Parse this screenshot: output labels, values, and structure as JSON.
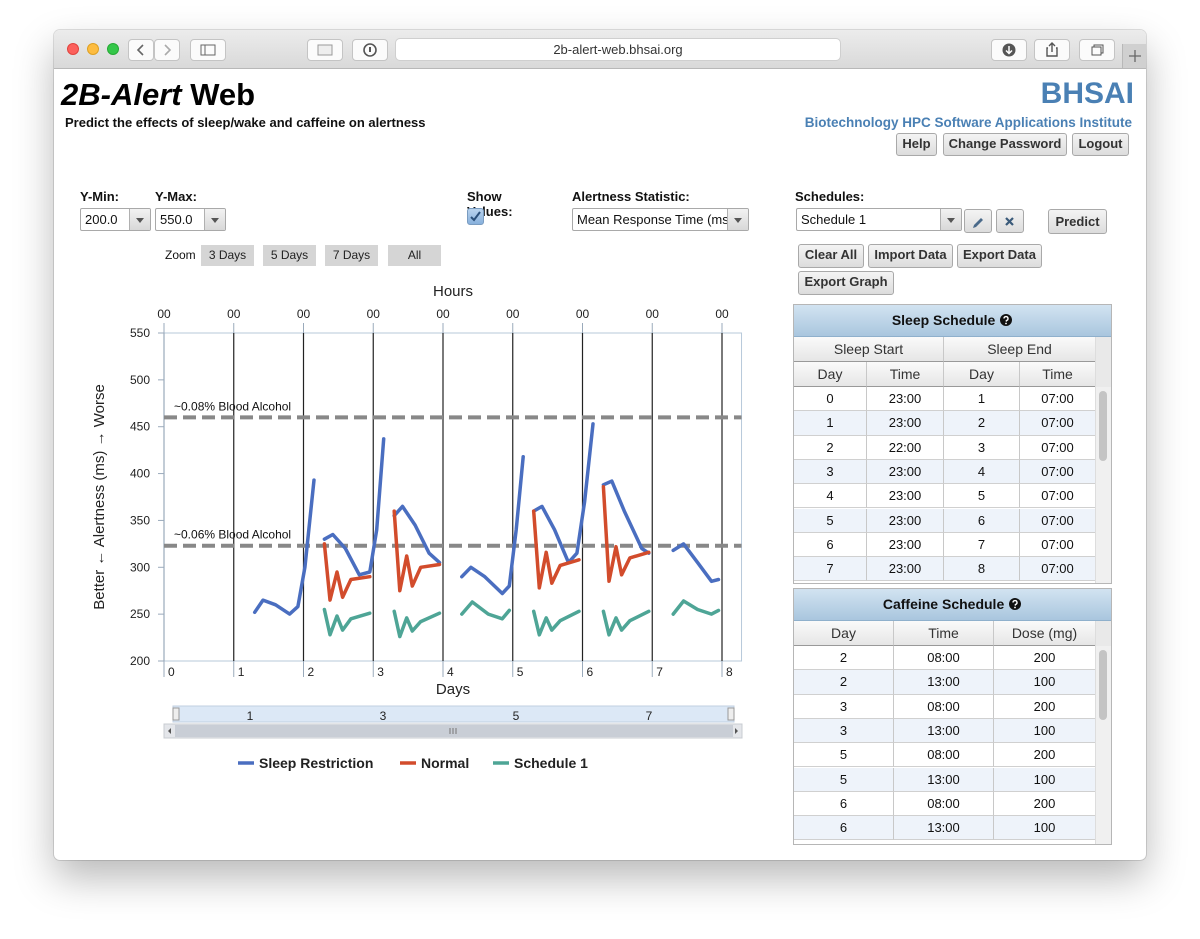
{
  "browser": {
    "url": "2b-alert-web.bhsai.org"
  },
  "header": {
    "title_italic": "2B-Alert",
    "title_rest": "Web",
    "subtitle": "Predict the effects of sleep/wake and caffeine on alertness",
    "org": "BHSAI",
    "org_full": "Biotechnology HPC Software Applications Institute",
    "buttons": [
      "Help",
      "Change Password",
      "Logout"
    ]
  },
  "controls": {
    "ymin_label": "Y-Min:",
    "ymin": "200.0",
    "ymax_label": "Y-Max:",
    "ymax": "550.0",
    "show_values_label": "Show Values:",
    "statistic_label": "Alertness Statistic:",
    "statistic": "Mean Response Time (ms",
    "schedules_label": "Schedules:",
    "schedule": "Schedule 1",
    "predict": "Predict",
    "zoom_label": "Zoom",
    "zoom": [
      "3 Days",
      "5 Days",
      "7 Days",
      "All"
    ],
    "actions": [
      "Clear All",
      "Import Data",
      "Export Data",
      "Export Graph"
    ]
  },
  "chart_data": {
    "type": "line",
    "x2_label": "Hours",
    "x_label": "Days",
    "y_label": "Better ← Alertness (ms) → Worse",
    "xlim": [
      0,
      8.28
    ],
    "xticks": [
      0,
      1,
      2,
      3,
      4,
      5,
      6,
      7,
      8
    ],
    "x2ticks": [
      {
        "value": 0,
        "label": "00"
      },
      {
        "value": 1,
        "label": "00"
      },
      {
        "value": 2,
        "label": "00"
      },
      {
        "value": 3,
        "label": "00"
      },
      {
        "value": 4,
        "label": "00"
      },
      {
        "value": 5,
        "label": "00"
      },
      {
        "value": 6,
        "label": "00"
      },
      {
        "value": 7,
        "label": "00"
      },
      {
        "value": 8,
        "label": "00"
      }
    ],
    "ylim": [
      200,
      550
    ],
    "yticks": [
      200,
      250,
      300,
      350,
      400,
      450,
      500,
      550
    ],
    "grid": true,
    "reference_lines": [
      {
        "value": 460,
        "label": "~0.08% Blood Alcohol",
        "color": "#888888"
      },
      {
        "value": 323,
        "label": "~0.06% Blood Alcohol",
        "color": "#888888"
      }
    ],
    "navigator_ticks": [
      1,
      3,
      5,
      7
    ],
    "series": [
      {
        "name": "Sleep Restriction",
        "color": "#4a6ec0",
        "x": [
          1.3,
          1.42,
          1.6,
          1.8,
          1.92,
          2.02,
          2.15,
          2.22,
          2.3,
          2.42,
          2.6,
          2.8,
          2.95,
          3.05,
          3.15,
          3.22,
          3.3,
          3.42,
          3.6,
          3.8,
          3.95,
          4.1,
          4.27,
          4.4,
          4.6,
          4.85,
          4.95,
          5.05,
          5.15,
          5.22,
          5.3,
          5.42,
          5.6,
          5.8,
          5.92,
          6.03,
          6.15,
          6.22,
          6.3,
          6.42,
          6.6,
          6.85,
          6.95,
          7.1,
          7.3,
          7.45,
          7.65,
          7.85,
          7.95
        ],
        "values": [
          252,
          265,
          260,
          250,
          258,
          300,
          393,
          null,
          330,
          335,
          320,
          292,
          295,
          340,
          437,
          null,
          355,
          365,
          345,
          315,
          305,
          null,
          290,
          300,
          290,
          272,
          280,
          340,
          418,
          null,
          360,
          365,
          340,
          305,
          315,
          370,
          453,
          null,
          388,
          392,
          360,
          320,
          315,
          null,
          318,
          325,
          305,
          285,
          287
        ]
      },
      {
        "name": "Normal",
        "color": "#d24c2c",
        "x": [
          2.3,
          2.38,
          2.48,
          2.56,
          2.68,
          2.95,
          3.1,
          3.3,
          3.38,
          3.48,
          3.56,
          3.68,
          3.95,
          4.2,
          5.3,
          5.38,
          5.48,
          5.56,
          5.68,
          5.95,
          6.1,
          6.3,
          6.38,
          6.48,
          6.56,
          6.68,
          6.95
        ],
        "values": [
          325,
          265,
          295,
          268,
          287,
          290,
          null,
          360,
          275,
          312,
          280,
          300,
          303,
          null,
          360,
          278,
          316,
          283,
          302,
          308,
          null,
          386,
          285,
          322,
          292,
          310,
          316
        ]
      },
      {
        "name": "Schedule 1",
        "color": "#4ea596",
        "x": [
          2.3,
          2.38,
          2.48,
          2.56,
          2.68,
          2.95,
          3.1,
          3.3,
          3.38,
          3.48,
          3.56,
          3.68,
          3.95,
          4.1,
          4.27,
          4.42,
          4.65,
          4.85,
          4.95,
          5.1,
          5.3,
          5.38,
          5.48,
          5.56,
          5.68,
          5.95,
          6.1,
          6.3,
          6.38,
          6.48,
          6.56,
          6.68,
          6.95,
          7.1,
          7.3,
          7.45,
          7.65,
          7.85,
          7.95
        ],
        "values": [
          255,
          228,
          248,
          233,
          245,
          251,
          null,
          253,
          226,
          246,
          232,
          242,
          251,
          null,
          250,
          263,
          250,
          245,
          254,
          null,
          253,
          228,
          246,
          233,
          243,
          253,
          null,
          253,
          228,
          246,
          233,
          243,
          253,
          null,
          250,
          264,
          255,
          250,
          254
        ]
      }
    ]
  },
  "sleep_schedule": {
    "title": "Sleep Schedule",
    "groups": [
      "Sleep Start",
      "Sleep End"
    ],
    "columns": [
      "Day",
      "Time",
      "Day",
      "Time"
    ],
    "rows": [
      [
        0,
        "23:00",
        1,
        "07:00"
      ],
      [
        1,
        "23:00",
        2,
        "07:00"
      ],
      [
        2,
        "22:00",
        3,
        "07:00"
      ],
      [
        3,
        "23:00",
        4,
        "07:00"
      ],
      [
        4,
        "23:00",
        5,
        "07:00"
      ],
      [
        5,
        "23:00",
        6,
        "07:00"
      ],
      [
        6,
        "23:00",
        7,
        "07:00"
      ],
      [
        7,
        "23:00",
        8,
        "07:00"
      ]
    ]
  },
  "caffeine_schedule": {
    "title": "Caffeine Schedule",
    "columns": [
      "Day",
      "Time",
      "Dose (mg)"
    ],
    "rows": [
      [
        2,
        "08:00",
        200
      ],
      [
        2,
        "13:00",
        100
      ],
      [
        3,
        "08:00",
        200
      ],
      [
        3,
        "13:00",
        100
      ],
      [
        5,
        "08:00",
        200
      ],
      [
        5,
        "13:00",
        100
      ],
      [
        6,
        "08:00",
        200
      ],
      [
        6,
        "13:00",
        100
      ]
    ]
  }
}
